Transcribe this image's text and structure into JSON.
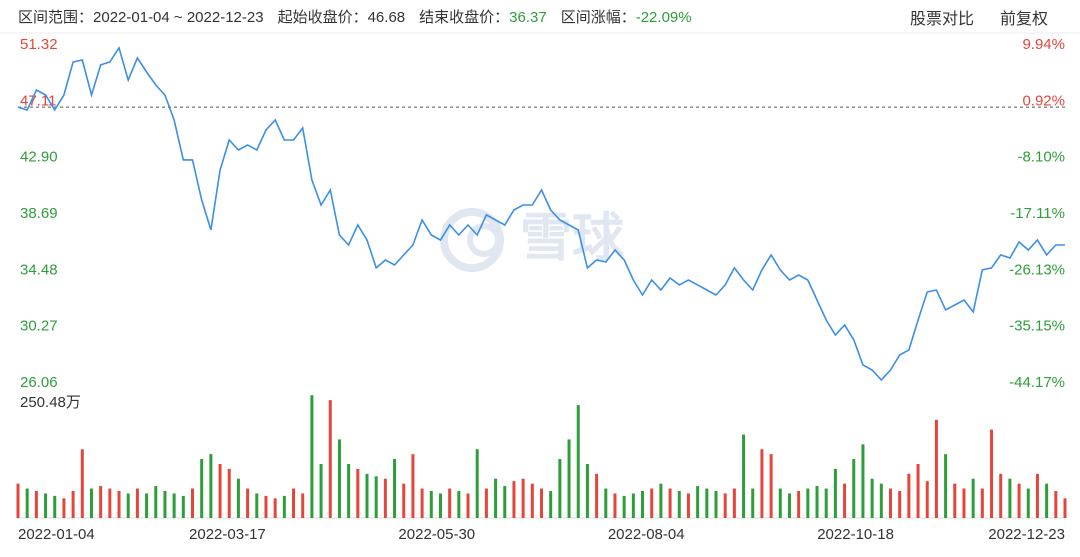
{
  "header": {
    "items": [
      {
        "label": "区间范围：",
        "value": "2022-01-04 ~ 2022-12-23"
      },
      {
        "label": "起始收盘价：",
        "value": 46.68
      },
      {
        "label": "结束收盘价：",
        "value": 36.37
      },
      {
        "label": "区间涨幅：",
        "value": "-22.09%"
      }
    ],
    "buttons": [
      "股票对比",
      "前复权"
    ]
  },
  "watermark": "雪球",
  "chart_data": [
    {
      "type": "line",
      "color": "#3b8fe8",
      "up_color": "#e4463b",
      "down_color": "#2e9e3a",
      "ylim": [
        26.06,
        51.32
      ],
      "yticks": [
        51.32,
        47.11,
        {
          "value": 42.9,
          "label": "42.90"
        },
        38.69,
        34.48,
        30.27,
        26.06
      ],
      "y2lim": [
        -44.17,
        9.94
      ],
      "y2ticks": [
        {
          "value": 9.94,
          "label": "9.94%"
        },
        {
          "value": 0.92,
          "label": "0.92%"
        },
        {
          "value": -8.1,
          "label": "-8.10%"
        },
        {
          "value": -17.11,
          "label": "-17.11%"
        },
        {
          "value": -26.13,
          "label": "-26.13%"
        },
        {
          "value": -35.15,
          "label": "-35.15%"
        },
        {
          "value": -44.17,
          "label": "-44.17%"
        }
      ],
      "x_labels": [
        "2022-01-04",
        "2022-03-17",
        "2022-05-30",
        "2022-08-04",
        "2022-10-18",
        "2022-12-23"
      ],
      "values": [
        46.68,
        46.46,
        47.96,
        47.58,
        46.46,
        47.58,
        50.05,
        50.2,
        47.58,
        49.83,
        50.05,
        51.1,
        48.7,
        50.35,
        49.3,
        48.33,
        47.58,
        45.72,
        42.73,
        42.73,
        39.74,
        37.5,
        41.98,
        44.22,
        43.47,
        43.85,
        43.47,
        44.97,
        45.72,
        44.22,
        44.22,
        45.12,
        41.23,
        39.36,
        40.48,
        37.12,
        36.37,
        37.87,
        36.75,
        34.66,
        35.25,
        34.88,
        35.63,
        36.37,
        38.24,
        37.12,
        36.75,
        37.87,
        37.12,
        37.87,
        37.12,
        38.62,
        38.24,
        37.87,
        38.99,
        39.36,
        39.36,
        40.48,
        38.99,
        38.24,
        37.87,
        37.5,
        34.66,
        35.25,
        35.1,
        36.0,
        35.25,
        33.76,
        32.64,
        33.76,
        33.01,
        33.91,
        33.39,
        33.76,
        33.39,
        33.01,
        32.64,
        33.39,
        34.66,
        33.76,
        33.01,
        34.51,
        35.63,
        34.51,
        33.76,
        34.13,
        33.76,
        32.26,
        30.77,
        29.65,
        30.4,
        29.28,
        27.41,
        27.03,
        26.29,
        27.03,
        28.15,
        28.53,
        30.77,
        32.86,
        33.01,
        31.52,
        31.89,
        32.26,
        31.37,
        34.51,
        34.66,
        35.63,
        35.4,
        36.6,
        36.0,
        36.75,
        35.63,
        36.37,
        36.37
      ]
    },
    {
      "type": "bar",
      "ylim": [
        0,
        250.48
      ],
      "yticks": [
        {
          "value": 250.48,
          "label": "250.48万"
        }
      ],
      "values": [
        70,
        60,
        55,
        50,
        45,
        40,
        55,
        140,
        60,
        65,
        60,
        55,
        50,
        60,
        50,
        65,
        55,
        50,
        45,
        60,
        120,
        130,
        110,
        100,
        80,
        60,
        50,
        45,
        40,
        45,
        60,
        50,
        250,
        110,
        240,
        160,
        110,
        100,
        90,
        85,
        80,
        120,
        70,
        130,
        60,
        55,
        50,
        60,
        55,
        50,
        140,
        60,
        80,
        65,
        75,
        80,
        70,
        60,
        55,
        120,
        160,
        230,
        110,
        90,
        60,
        50,
        45,
        50,
        55,
        60,
        70,
        60,
        55,
        50,
        65,
        60,
        55,
        50,
        60,
        170,
        60,
        140,
        130,
        60,
        50,
        55,
        60,
        65,
        60,
        100,
        70,
        120,
        150,
        80,
        70,
        60,
        55,
        90,
        110,
        75,
        200,
        130,
        70,
        60,
        80,
        60,
        180,
        90,
        80,
        70,
        60,
        90,
        70,
        55,
        40
      ]
    }
  ]
}
